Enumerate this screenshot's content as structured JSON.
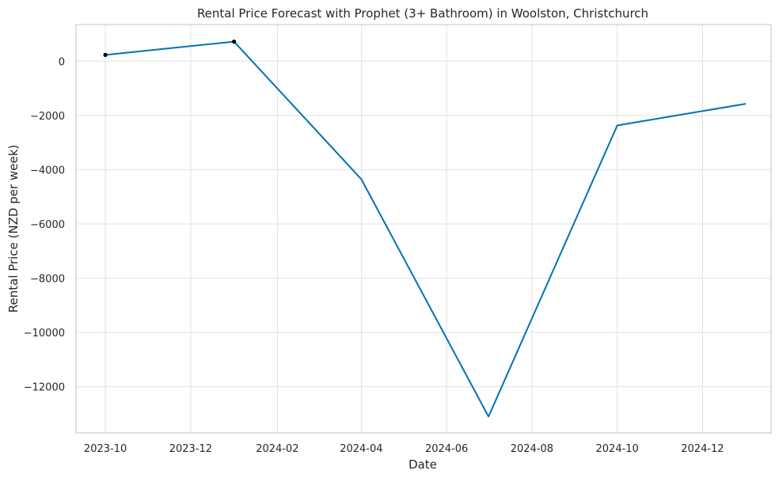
{
  "chart_data": {
    "type": "line",
    "title": "Rental Price Forecast with Prophet (3+ Bathroom) in Woolston, Christchurch",
    "xlabel": "Date",
    "ylabel": "Rental Price (NZD per week)",
    "x_ticks": [
      "2023-10",
      "2023-12",
      "2024-02",
      "2024-04",
      "2024-06",
      "2024-08",
      "2024-10",
      "2024-12"
    ],
    "y_ticks": [
      0,
      -2000,
      -4000,
      -6000,
      -8000,
      -10000,
      -12000
    ],
    "y_tick_labels": [
      "0",
      "−2000",
      "−4000",
      "−6000",
      "−8000",
      "−10000",
      "−12000"
    ],
    "xlim": [
      "2023-09-10",
      "2025-01-19"
    ],
    "ylim": [
      -13700,
      1350
    ],
    "grid": true,
    "series": [
      {
        "color": "#0072b2",
        "points": [
          {
            "x": "2023-10-01",
            "y": 230
          },
          {
            "x": "2024-01-01",
            "y": 720
          },
          {
            "x": "2024-04-01",
            "y": -4350
          },
          {
            "x": "2024-07-01",
            "y": -13100
          },
          {
            "x": "2024-10-01",
            "y": -2370
          },
          {
            "x": "2025-01-01",
            "y": -1570
          }
        ]
      }
    ],
    "observed_points": [
      {
        "x": "2023-10-01",
        "y": 230
      },
      {
        "x": "2024-01-01",
        "y": 720
      }
    ],
    "observed_color": "#000000"
  }
}
